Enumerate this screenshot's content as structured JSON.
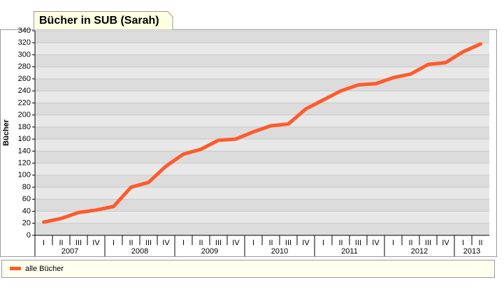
{
  "chart_data": {
    "type": "line",
    "title": "Bücher in SUB (Sarah)",
    "y_label": "Bücher",
    "categories": [
      "I",
      "II",
      "III",
      "IV",
      "I",
      "II",
      "III",
      "IV",
      "I",
      "II",
      "III",
      "IV",
      "I",
      "II",
      "III",
      "IV",
      "I",
      "II",
      "III",
      "IV",
      "I",
      "II",
      "III",
      "IV",
      "I",
      "II"
    ],
    "year_groups": [
      {
        "label": "2007",
        "quarters": 4
      },
      {
        "label": "2008",
        "quarters": 4
      },
      {
        "label": "2009",
        "quarters": 4
      },
      {
        "label": "2010",
        "quarters": 4
      },
      {
        "label": "2011",
        "quarters": 4
      },
      {
        "label": "2012",
        "quarters": 4
      },
      {
        "label": "2013",
        "quarters": 2
      }
    ],
    "series": [
      {
        "name": "alle Bücher",
        "color": "#ff5a2c",
        "values": [
          22,
          28,
          38,
          42,
          48,
          80,
          88,
          115,
          135,
          143,
          158,
          160,
          172,
          182,
          185,
          210,
          225,
          240,
          250,
          252,
          262,
          268,
          284,
          287,
          305,
          318
        ]
      }
    ],
    "ylim": [
      0,
      340
    ],
    "yticks": [
      0,
      20,
      40,
      60,
      80,
      100,
      120,
      140,
      160,
      180,
      200,
      220,
      240,
      260,
      280,
      300,
      320,
      340
    ],
    "grid": true
  }
}
